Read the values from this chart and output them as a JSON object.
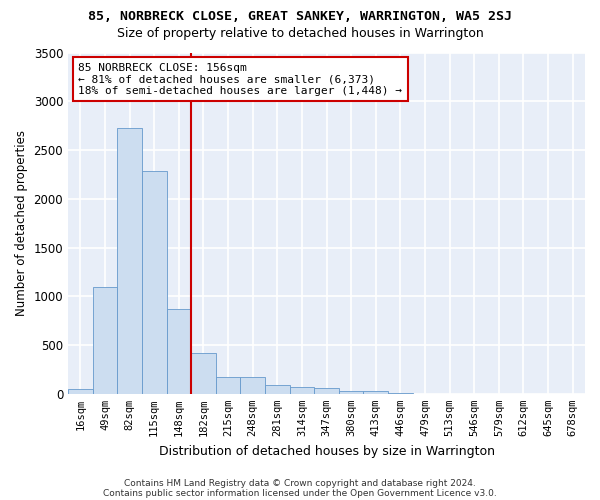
{
  "title": "85, NORBRECK CLOSE, GREAT SANKEY, WARRINGTON, WA5 2SJ",
  "subtitle": "Size of property relative to detached houses in Warrington",
  "xlabel": "Distribution of detached houses by size in Warrington",
  "ylabel": "Number of detached properties",
  "bar_color": "#ccddf0",
  "bar_edge_color": "#6699cc",
  "bar_values": [
    50,
    1100,
    2730,
    2280,
    870,
    415,
    175,
    170,
    90,
    65,
    55,
    30,
    25,
    10,
    0,
    0,
    0,
    0,
    0,
    0,
    0
  ],
  "bin_labels": [
    "16sqm",
    "49sqm",
    "82sqm",
    "115sqm",
    "148sqm",
    "182sqm",
    "215sqm",
    "248sqm",
    "281sqm",
    "314sqm",
    "347sqm",
    "380sqm",
    "413sqm",
    "446sqm",
    "479sqm",
    "513sqm",
    "546sqm",
    "579sqm",
    "612sqm",
    "645sqm",
    "678sqm"
  ],
  "n_bars": 21,
  "ylim": [
    0,
    3500
  ],
  "yticks": [
    0,
    500,
    1000,
    1500,
    2000,
    2500,
    3000,
    3500
  ],
  "vline_x": 4.5,
  "vline_color": "#cc0000",
  "annotation_text": "85 NORBRECK CLOSE: 156sqm\n← 81% of detached houses are smaller (6,373)\n18% of semi-detached houses are larger (1,448) →",
  "annotation_box_color": "#ffffff",
  "annotation_border_color": "#cc0000",
  "footer1": "Contains HM Land Registry data © Crown copyright and database right 2024.",
  "footer2": "Contains public sector information licensed under the Open Government Licence v3.0.",
  "fig_bg_color": "#ffffff",
  "ax_bg_color": "#e8eef8",
  "grid_color": "#ffffff"
}
